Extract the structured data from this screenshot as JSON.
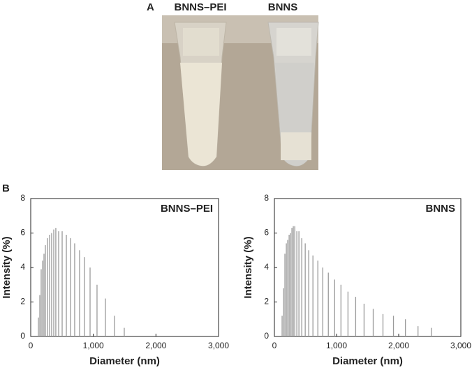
{
  "panel_a": {
    "label": "A",
    "tube_labels": [
      "BNNS–PEI",
      "BNNS"
    ]
  },
  "panel_b": {
    "label": "B"
  },
  "chart_data": [
    {
      "type": "stem",
      "title": "BNNS–PEI",
      "x_label": "Diameter (nm)",
      "y_label": "Intensity (%)",
      "color": "#9a9a9a",
      "x": [
        123,
        145,
        167,
        190,
        212,
        234,
        268,
        301,
        334,
        368,
        401,
        446,
        502,
        569,
        636,
        702,
        780,
        858,
        948,
        1059,
        1193,
        1338,
        1494
      ],
      "values": [
        1.1,
        2.4,
        3.9,
        4.4,
        4.8,
        5.3,
        5.7,
        5.9,
        6.0,
        6.2,
        6.3,
        6.1,
        6.1,
        5.9,
        5.7,
        5.4,
        5.0,
        4.6,
        4.0,
        3.0,
        2.2,
        1.2,
        0.5
      ],
      "xlim": [
        0,
        3000
      ],
      "xticks": [
        0,
        {
          "value": 1000,
          "label": "1,000"
        },
        {
          "value": 2000,
          "label": "2,000"
        },
        {
          "value": 3000,
          "label": "3,000"
        }
      ],
      "ylim": [
        0,
        8
      ],
      "yticks": [
        0,
        2,
        4,
        6,
        8
      ]
    },
    {
      "type": "stem",
      "title": "BNNS",
      "x_label": "Diameter (nm)",
      "y_label": "Intensity (%)",
      "color": "#9a9a9a",
      "x": [
        124,
        147,
        169,
        192,
        214,
        237,
        259,
        282,
        304,
        327,
        361,
        395,
        440,
        496,
        552,
        620,
        699,
        778,
        868,
        970,
        1071,
        1184,
        1308,
        1443,
        1590,
        1747,
        1916,
        2108,
        2311,
        2525
      ],
      "values": [
        1.2,
        2.8,
        4.8,
        5.4,
        5.6,
        5.9,
        6.0,
        6.3,
        6.4,
        6.4,
        6.1,
        6.1,
        5.7,
        5.4,
        5.0,
        4.7,
        4.4,
        4.0,
        3.7,
        3.3,
        3.0,
        2.6,
        2.3,
        1.9,
        1.6,
        1.3,
        1.2,
        1.0,
        0.6,
        0.5
      ],
      "xlim": [
        0,
        3000
      ],
      "xticks": [
        0,
        {
          "value": 1000,
          "label": "1,000"
        },
        {
          "value": 2000,
          "label": "2,000"
        },
        {
          "value": 3000,
          "label": "3,000"
        }
      ],
      "ylim": [
        0,
        8
      ],
      "yticks": [
        0,
        2,
        4,
        6,
        8
      ]
    }
  ]
}
